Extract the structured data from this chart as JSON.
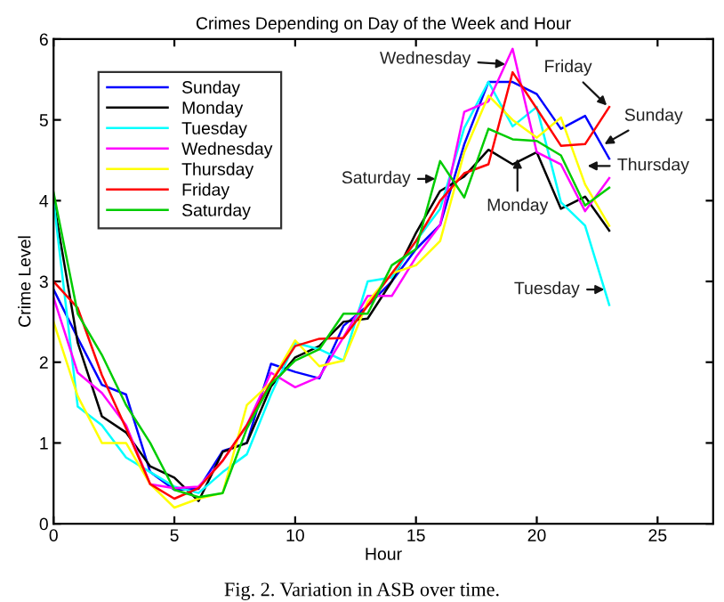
{
  "chart_data": {
    "type": "line",
    "title": "Crimes Depending on Day of the Week and Hour",
    "xlabel": "Hour",
    "ylabel": "Crime Level",
    "x": [
      0,
      1,
      2,
      3,
      4,
      5,
      6,
      7,
      8,
      9,
      10,
      11,
      12,
      13,
      14,
      15,
      16,
      17,
      18,
      19,
      20,
      21,
      22,
      23
    ],
    "series": [
      {
        "name": "Sunday",
        "color": "#0000ff",
        "values": [
          2.9,
          2.3,
          1.72,
          1.6,
          0.64,
          0.42,
          0.43,
          0.9,
          1.0,
          1.98,
          1.88,
          1.8,
          2.45,
          2.7,
          3.0,
          3.4,
          3.7,
          4.7,
          5.47,
          5.47,
          5.32,
          4.89,
          5.05,
          4.52
        ]
      },
      {
        "name": "Monday",
        "color": "#000000",
        "values": [
          4.0,
          2.24,
          1.33,
          1.13,
          0.71,
          0.57,
          0.28,
          0.89,
          1.0,
          1.7,
          2.06,
          2.2,
          2.5,
          2.54,
          3.0,
          3.6,
          4.12,
          4.3,
          4.63,
          4.45,
          4.6,
          3.9,
          4.05,
          3.63
        ]
      },
      {
        "name": "Tuesday",
        "color": "#00ffff",
        "values": [
          4.0,
          1.45,
          1.22,
          0.82,
          0.64,
          0.46,
          0.38,
          0.64,
          0.86,
          1.6,
          2.24,
          2.16,
          2.02,
          3.0,
          3.05,
          3.5,
          3.9,
          4.9,
          5.47,
          4.92,
          5.16,
          3.98,
          3.69,
          2.71
        ]
      },
      {
        "name": "Wednesday",
        "color": "#ff00ff",
        "values": [
          2.8,
          1.87,
          1.62,
          1.22,
          0.49,
          0.44,
          0.46,
          0.78,
          1.22,
          1.87,
          1.69,
          1.82,
          2.31,
          2.82,
          2.82,
          3.3,
          3.7,
          5.1,
          5.23,
          5.88,
          4.6,
          4.45,
          3.87,
          4.28
        ]
      },
      {
        "name": "Thursday",
        "color": "#ffff00",
        "values": [
          2.5,
          1.58,
          1.0,
          1.0,
          0.49,
          0.2,
          0.31,
          0.38,
          1.47,
          1.75,
          2.27,
          1.95,
          2.02,
          2.75,
          3.1,
          3.2,
          3.5,
          4.6,
          5.3,
          5.0,
          4.78,
          5.03,
          4.2,
          3.69
        ]
      },
      {
        "name": "Friday",
        "color": "#ff0000",
        "values": [
          3.0,
          2.67,
          1.84,
          1.18,
          0.49,
          0.31,
          0.44,
          0.78,
          1.22,
          1.75,
          2.2,
          2.29,
          2.3,
          2.7,
          3.1,
          3.5,
          4.0,
          4.34,
          4.45,
          5.59,
          5.14,
          4.68,
          4.7,
          5.16
        ]
      },
      {
        "name": "Saturday",
        "color": "#00cc00",
        "values": [
          4.1,
          2.6,
          2.09,
          1.47,
          1.0,
          0.42,
          0.33,
          0.38,
          1.18,
          1.73,
          2.02,
          2.16,
          2.6,
          2.6,
          3.2,
          3.4,
          4.49,
          4.04,
          4.89,
          4.76,
          4.74,
          4.56,
          3.94,
          4.16
        ]
      }
    ],
    "xlim": [
      0,
      27.3
    ],
    "xticks": [
      0,
      5,
      10,
      15,
      20,
      25
    ],
    "ylim": [
      0,
      6
    ],
    "yticks": [
      0,
      1,
      2,
      3,
      4,
      5,
      6
    ],
    "legend": "top left",
    "grid": false,
    "annotations": [
      {
        "text": "Wednesday",
        "x": 18.7,
        "y": 5.69
      },
      {
        "text": "Friday",
        "x": 22.9,
        "y": 5.18
      },
      {
        "text": "Sunday",
        "x": 22.8,
        "y": 4.7
      },
      {
        "text": "Thursday",
        "x": 22.1,
        "y": 4.43
      },
      {
        "text": "Monday",
        "x": 19.2,
        "y": 4.52
      },
      {
        "text": "Saturday",
        "x": 15.8,
        "y": 4.27
      },
      {
        "text": "Tuesday",
        "x": 22.8,
        "y": 2.9
      },
      "Fig. 2. Variation in ASB over time."
    ]
  }
}
